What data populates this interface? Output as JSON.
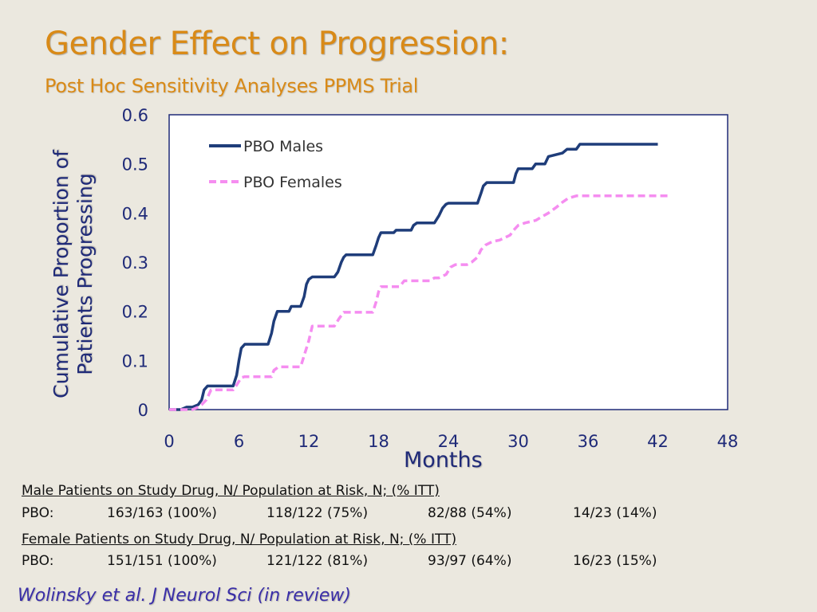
{
  "title": "Gender Effect on Progression:",
  "subtitle": "Post Hoc Sensitivity Analyses PPMS Trial",
  "citation": "Wolinsky et al.  J Neurol Sci (in review)",
  "table": {
    "male_header": "Male Patients on Study Drug, N/ Population at Risk, N; (% ITT)",
    "male_row": {
      "label": "PBO:",
      "c1": "163/163 (100%)",
      "c2": "118/122  (75%)",
      "c3": "82/88   (54%)",
      "c4": "14/23 (14%)"
    },
    "female_header": "Female Patients on Study Drug, N/ Population at Risk, N; (% ITT)",
    "female_row": {
      "label": "PBO:",
      "c1": "151/151  (100%)",
      "c2": "121/122  (81%)",
      "c3": "93/97   (64%)",
      "c4": "16/23 (15%)"
    }
  },
  "colors": {
    "males": "#1f3d7a",
    "females": "#f58df0",
    "title": "#d98a17",
    "axis_text": "#1f2a78"
  },
  "chart_data": {
    "type": "line",
    "title": "",
    "xlabel": "Months",
    "ylabel": "Cumulative Proportion of Patients Progressing",
    "xlim": [
      0,
      48
    ],
    "ylim": [
      0,
      0.6
    ],
    "xticks": [
      "0",
      "6",
      "12",
      "18",
      "24",
      "30",
      "36",
      "42",
      "48"
    ],
    "yticks": [
      "0",
      "0.1",
      "0.2",
      "0.3",
      "0.4",
      "0.5",
      "0.6"
    ],
    "grid": false,
    "legend": "top-left",
    "series": [
      {
        "name": "PBO Males",
        "style": "solid",
        "x": [
          0,
          1,
          1.5,
          2,
          2.5,
          2.8,
          3,
          3.3,
          5.5,
          5.8,
          6,
          6.2,
          6.5,
          8.5,
          8.8,
          9,
          9.3,
          10.3,
          10.5,
          11.3,
          11.6,
          11.8,
          12,
          12.3,
          14.2,
          14.5,
          14.8,
          15,
          15.2,
          17.5,
          17.8,
          18,
          18.2,
          19.3,
          19.5,
          20.8,
          21,
          21.3,
          22.8,
          23.2,
          23.5,
          23.8,
          24,
          26.5,
          26.8,
          27,
          27.3,
          29.6,
          29.8,
          30,
          31.2,
          31.5,
          32.3,
          32.6,
          33.8,
          34.2,
          35,
          35.3,
          42
        ],
        "y": [
          0,
          0,
          0.005,
          0.005,
          0.01,
          0.02,
          0.04,
          0.048,
          0.048,
          0.07,
          0.1,
          0.125,
          0.133,
          0.133,
          0.155,
          0.18,
          0.2,
          0.2,
          0.21,
          0.21,
          0.23,
          0.255,
          0.265,
          0.27,
          0.27,
          0.28,
          0.3,
          0.31,
          0.315,
          0.315,
          0.335,
          0.35,
          0.36,
          0.36,
          0.365,
          0.365,
          0.375,
          0.38,
          0.38,
          0.395,
          0.41,
          0.418,
          0.42,
          0.42,
          0.44,
          0.455,
          0.462,
          0.462,
          0.48,
          0.49,
          0.49,
          0.5,
          0.5,
          0.515,
          0.522,
          0.53,
          0.53,
          0.54,
          0.54
        ]
      },
      {
        "name": "PBO Females",
        "style": "dashed",
        "x": [
          0,
          2,
          2.5,
          2.8,
          3.2,
          3.6,
          5.5,
          5.8,
          6.2,
          6.5,
          8.8,
          9,
          9.4,
          11.3,
          11.6,
          12,
          12.3,
          14.2,
          14.6,
          15,
          17.5,
          17.8,
          18,
          18.2,
          19.8,
          20.2,
          22.4,
          22.8,
          23.2,
          23.8,
          24.2,
          24.6,
          25.6,
          26,
          26.5,
          26.8,
          27.2,
          27.8,
          28.4,
          29.3,
          29.6,
          30,
          30.6,
          31.5,
          32,
          32.6,
          33.3,
          33.8,
          34.3,
          35,
          43
        ],
        "y": [
          0,
          0,
          0.005,
          0.01,
          0.02,
          0.04,
          0.04,
          0.05,
          0.065,
          0.067,
          0.067,
          0.08,
          0.087,
          0.087,
          0.11,
          0.14,
          0.17,
          0.17,
          0.185,
          0.198,
          0.198,
          0.22,
          0.24,
          0.25,
          0.25,
          0.262,
          0.262,
          0.268,
          0.268,
          0.275,
          0.29,
          0.295,
          0.295,
          0.3,
          0.31,
          0.325,
          0.335,
          0.342,
          0.345,
          0.355,
          0.365,
          0.375,
          0.38,
          0.385,
          0.392,
          0.4,
          0.412,
          0.422,
          0.43,
          0.435,
          0.435
        ]
      }
    ]
  }
}
